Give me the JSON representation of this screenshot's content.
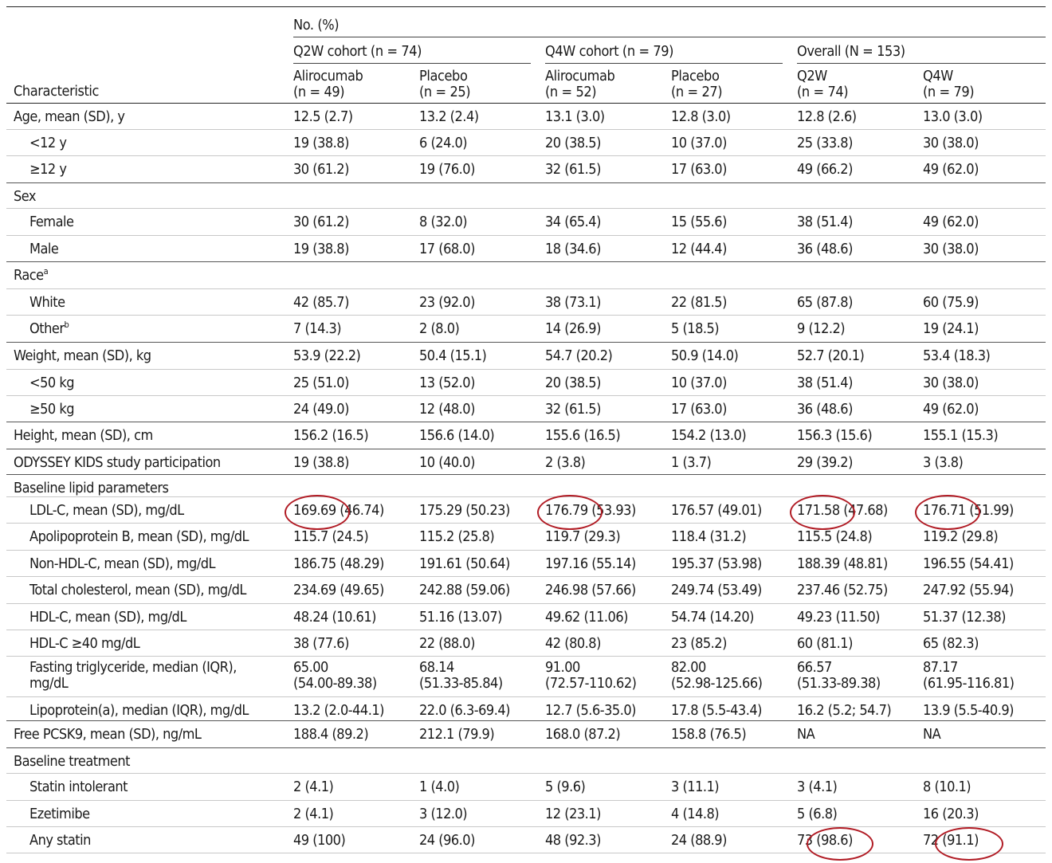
{
  "header": {
    "characteristic": "Characteristic",
    "no_pct": "No. (%)",
    "cohorts": [
      {
        "label": "Q2W cohort (n = 74)"
      },
      {
        "label": "Q4W cohort (n = 79)"
      },
      {
        "label": "Overall (N = 153)"
      }
    ],
    "columns": [
      {
        "line1": "Alirocumab",
        "line2": "(n = 49)"
      },
      {
        "line1": "Placebo",
        "line2": "(n = 25)"
      },
      {
        "line1": "Alirocumab",
        "line2": "(n = 52)"
      },
      {
        "line1": "Placebo",
        "line2": "(n = 27)"
      },
      {
        "line1": "Q2W",
        "line2": "(n = 74)"
      },
      {
        "line1": "Q4W",
        "line2": "(n = 79)"
      }
    ]
  },
  "rows": [
    {
      "label": "Age, mean (SD), y",
      "indent": false,
      "values": [
        "12.5 (2.7)",
        "13.2 (2.4)",
        "13.1 (3.0)",
        "12.8 (3.0)",
        "12.8 (2.6)",
        "13.0 (3.0)"
      ]
    },
    {
      "label": "<12 y",
      "indent": true,
      "values": [
        "19 (38.8)",
        "6 (24.0)",
        "20 (38.5)",
        "10 (37.0)",
        "25 (33.8)",
        "30 (38.0)"
      ]
    },
    {
      "label": "≥12 y",
      "indent": true,
      "values": [
        "30 (61.2)",
        "19 (76.0)",
        "32 (61.5)",
        "17 (63.0)",
        "49 (66.2)",
        "49 (62.0)"
      ]
    },
    {
      "label": "Sex",
      "indent": false,
      "values": [
        "",
        "",
        "",
        "",
        "",
        ""
      ]
    },
    {
      "label": "Female",
      "indent": true,
      "values": [
        "30 (61.2)",
        "8 (32.0)",
        "34 (65.4)",
        "15 (55.6)",
        "38 (51.4)",
        "49 (62.0)"
      ]
    },
    {
      "label": "Male",
      "indent": true,
      "values": [
        "19 (38.8)",
        "17 (68.0)",
        "18 (34.6)",
        "12 (44.4)",
        "36 (48.6)",
        "30 (38.0)"
      ]
    },
    {
      "label": "Race",
      "sup": "a",
      "indent": false,
      "values": [
        "",
        "",
        "",
        "",
        "",
        ""
      ]
    },
    {
      "label": "White",
      "indent": true,
      "values": [
        "42 (85.7)",
        "23 (92.0)",
        "38 (73.1)",
        "22 (81.5)",
        "65 (87.8)",
        "60 (75.9)"
      ]
    },
    {
      "label": "Other",
      "sup": "b",
      "indent": true,
      "values": [
        "7 (14.3)",
        "2 (8.0)",
        "14 (26.9)",
        "5 (18.5)",
        "9 (12.2)",
        "19 (24.1)"
      ]
    },
    {
      "label": "Weight, mean (SD), kg",
      "indent": false,
      "values": [
        "53.9 (22.2)",
        "50.4 (15.1)",
        "54.7 (20.2)",
        "50.9 (14.0)",
        "52.7 (20.1)",
        "53.4 (18.3)"
      ]
    },
    {
      "label": "<50 kg",
      "indent": true,
      "values": [
        "25 (51.0)",
        "13 (52.0)",
        "20 (38.5)",
        "10 (37.0)",
        "38 (51.4)",
        "30 (38.0)"
      ]
    },
    {
      "label": "≥50 kg",
      "indent": true,
      "values": [
        "24 (49.0)",
        "12 (48.0)",
        "32 (61.5)",
        "17 (63.0)",
        "36 (48.6)",
        "49 (62.0)"
      ]
    },
    {
      "label": "Height, mean (SD), cm",
      "indent": false,
      "values": [
        "156.2 (16.5)",
        "156.6 (14.0)",
        "155.6 (16.5)",
        "154.2 (13.0)",
        "156.3 (15.6)",
        "155.1 (15.3)"
      ]
    },
    {
      "label": "ODYSSEY KIDS study participation",
      "indent": false,
      "values": [
        "19 (38.8)",
        "10 (40.0)",
        "2 (3.8)",
        "1 (3.7)",
        "29 (39.2)",
        "3 (3.8)"
      ]
    },
    {
      "label": "Baseline lipid parameters",
      "indent": false,
      "values": [
        "",
        "",
        "",
        "",
        "",
        ""
      ]
    },
    {
      "label": "LDL-C, mean (SD), mg/dL",
      "indent": true,
      "values": [
        "169.69 (46.74)",
        "175.29 (50.23)",
        "176.79 (53.93)",
        "176.57 (49.01)",
        "171.58 (47.68)",
        "176.71 (51.99)"
      ]
    },
    {
      "label": "Apolipoprotein B, mean (SD), mg/dL",
      "indent": true,
      "values": [
        "115.7 (24.5)",
        "115.2 (25.8)",
        "119.7 (29.3)",
        "118.4 (31.2)",
        "115.5 (24.8)",
        "119.2 (29.8)"
      ]
    },
    {
      "label": "Non-HDL-C, mean (SD), mg/dL",
      "indent": true,
      "values": [
        "186.75 (48.29)",
        "191.61 (50.64)",
        "197.16 (55.14)",
        "195.37 (53.98)",
        "188.39 (48.81)",
        "196.55 (54.41)"
      ]
    },
    {
      "label": "Total cholesterol, mean (SD), mg/dL",
      "indent": true,
      "values": [
        "234.69 (49.65)",
        "242.88 (59.06)",
        "246.98 (57.66)",
        "249.74 (53.49)",
        "237.46 (52.75)",
        "247.92 (55.94)"
      ]
    },
    {
      "label": "HDL-C, mean (SD), mg/dL",
      "indent": true,
      "values": [
        "48.24 (10.61)",
        "51.16 (13.07)",
        "49.62 (11.06)",
        "54.74 (14.20)",
        "49.23 (11.50)",
        "51.37 (12.38)"
      ]
    },
    {
      "label": "HDL-C ≥40 mg/dL",
      "indent": true,
      "values": [
        "38 (77.6)",
        "22 (88.0)",
        "42 (80.8)",
        "23 (85.2)",
        "60 (81.1)",
        "65 (82.3)"
      ]
    },
    {
      "label": "Fasting triglyceride, median (IQR),",
      "label2": "mg/dL",
      "indent": true,
      "tall": true,
      "values": [
        "65.00",
        "68.14",
        "91.00",
        "82.00",
        "66.57",
        "87.17"
      ],
      "values2": [
        "(54.00-89.38)",
        "(51.33-85.84)",
        "(72.57-110.62)",
        "(52.98-125.66)",
        "(51.33-89.38)",
        "(61.95-116.81)"
      ]
    },
    {
      "label": "Lipoprotein(a), median (IQR), mg/dL",
      "indent": true,
      "values": [
        "13.2 (2.0-44.1)",
        "22.0 (6.3-69.4)",
        "12.7 (5.6-35.0)",
        "17.8 (5.5-43.4)",
        "16.2 (5.2; 54.7)",
        "13.9 (5.5-40.9)"
      ]
    },
    {
      "label": "Free PCSK9, mean (SD), ng/mL",
      "indent": false,
      "values": [
        "188.4 (89.2)",
        "212.1 (79.9)",
        "168.0 (87.2)",
        "158.8 (76.5)",
        "NA",
        "NA"
      ]
    },
    {
      "label": "Baseline treatment",
      "indent": false,
      "values": [
        "",
        "",
        "",
        "",
        "",
        ""
      ]
    },
    {
      "label": "Statin intolerant",
      "indent": true,
      "values": [
        "2 (4.1)",
        "1 (4.0)",
        "5 (9.6)",
        "3 (11.1)",
        "3 (4.1)",
        "8 (10.1)"
      ]
    },
    {
      "label": "Ezetimibe",
      "indent": true,
      "values": [
        "2 (4.1)",
        "3 (12.0)",
        "12 (23.1)",
        "4 (14.8)",
        "5 (6.8)",
        "16 (20.3)"
      ]
    },
    {
      "label": "Any statin",
      "indent": true,
      "values": [
        "49 (100)",
        "24 (96.0)",
        "48 (92.3)",
        "24 (88.9)",
        "73 (98.6)",
        "72 (91.1)"
      ]
    }
  ],
  "annotation_color": "#b11c25"
}
